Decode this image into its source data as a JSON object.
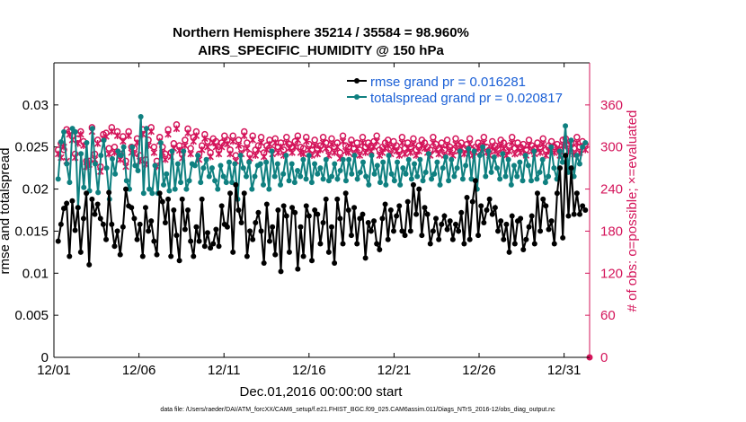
{
  "chart_data": {
    "type": "line",
    "title_line1": "Northern Hemisphere 35214 / 35584 = 98.960%",
    "title_line2": "AIRS_SPECIFIC_HUMIDITY @ 150 hPa",
    "xlabel": "Dec.01,2016 00:00:00 start",
    "ylabel_left": "rmse and totalspread",
    "ylabel_right": "# of obs: o=possible; ×=evaluated",
    "footer": "data file: /Users/raeder/DAI/ATM_forcXX/CAM6_setup/f.e21.FHIST_BGC.f09_025.CAM6assim.011/Diags_NTrS_2016-12/obs_diag_output.nc",
    "xlim": [
      0,
      31.5
    ],
    "ylim_left": [
      0,
      0.035
    ],
    "ylim_right": [
      0,
      420
    ],
    "x_tick_labels": [
      "12/01",
      "12/06",
      "12/11",
      "12/16",
      "12/21",
      "12/26",
      "12/31"
    ],
    "x_tick_values": [
      0,
      5,
      10,
      15,
      20,
      25,
      30
    ],
    "y_left_tick_labels": [
      "0",
      "0.005",
      "0.01",
      "0.015",
      "0.02",
      "0.025",
      "0.03"
    ],
    "y_left_tick_values": [
      0,
      0.005,
      0.01,
      0.015,
      0.02,
      0.025,
      0.03
    ],
    "y_right_tick_labels": [
      "0",
      "60",
      "120",
      "180",
      "240",
      "300",
      "360"
    ],
    "y_right_tick_values": [
      0,
      60,
      120,
      180,
      240,
      300,
      360
    ],
    "colors": {
      "rmse": "#000000",
      "spread": "#0f8080",
      "obs": "#d4145a",
      "legend_text": "#1a5fd6"
    },
    "series": [
      {
        "name": "rmse grand pr = 0.016281",
        "axis": "left",
        "values": [
          0.0138,
          0.0158,
          0.0177,
          0.0183,
          0.012,
          0.0186,
          0.0151,
          0.0178,
          0.0125,
          0.0165,
          0.0195,
          0.011,
          0.0188,
          0.017,
          0.0182,
          0.0165,
          0.0158,
          0.014,
          0.0196,
          0.0158,
          0.0132,
          0.015,
          0.0122,
          0.0155,
          0.02,
          0.018,
          0.0178,
          0.0165,
          0.014,
          0.0158,
          0.012,
          0.0178,
          0.015,
          0.0162,
          0.0138,
          0.0122,
          0.0195,
          0.0185,
          0.016,
          0.0188,
          0.012,
          0.0175,
          0.0145,
          0.0115,
          0.0188,
          0.0152,
          0.0175,
          0.0138,
          0.012,
          0.0155,
          0.0138,
          0.0188,
          0.0132,
          0.0148,
          0.013,
          0.0135,
          0.0152,
          0.0132,
          0.018,
          0.0158,
          0.0155,
          0.0195,
          0.0125,
          0.0205,
          0.0175,
          0.016,
          0.0195,
          0.012,
          0.015,
          0.014,
          0.016,
          0.0172,
          0.015,
          0.0112,
          0.0182,
          0.0138,
          0.0155,
          0.0122,
          0.0175,
          0.0102,
          0.018,
          0.0168,
          0.0125,
          0.0178,
          0.0172,
          0.0105,
          0.0155,
          0.012,
          0.018,
          0.0168,
          0.0115,
          0.0175,
          0.017,
          0.0135,
          0.016,
          0.0188,
          0.0125,
          0.0155,
          0.0112,
          0.0188,
          0.0165,
          0.0135,
          0.0195,
          0.0175,
          0.0145,
          0.0178,
          0.0135,
          0.0165,
          0.017,
          0.0118,
          0.016,
          0.015,
          0.0162,
          0.0135,
          0.0128,
          0.0165,
          0.0182,
          0.014,
          0.0175,
          0.015,
          0.0168,
          0.018,
          0.015,
          0.0145,
          0.0185,
          0.015,
          0.0205,
          0.017,
          0.02,
          0.0145,
          0.0178,
          0.017,
          0.0135,
          0.015,
          0.0165,
          0.014,
          0.0158,
          0.0168,
          0.0152,
          0.0162,
          0.014,
          0.0158,
          0.015,
          0.0172,
          0.0135,
          0.019,
          0.014,
          0.0185,
          0.021,
          0.0145,
          0.018,
          0.016,
          0.0175,
          0.0188,
          0.017,
          0.0178,
          0.015,
          0.0162,
          0.014,
          0.0158,
          0.0125,
          0.0168,
          0.0135,
          0.0162,
          0.0165,
          0.0128,
          0.014,
          0.0155,
          0.0168,
          0.0135,
          0.0195,
          0.015,
          0.0188,
          0.018,
          0.0152,
          0.0162,
          0.0135,
          0.0195,
          0.0225,
          0.0142,
          0.024,
          0.0168,
          0.0225,
          0.017,
          0.0195,
          0.017,
          0.018,
          0.0175
        ]
      },
      {
        "name": "totalspread grand pr = 0.020817",
        "axis": "left",
        "values": [
          0.0212,
          0.0256,
          0.0268,
          0.023,
          0.0208,
          0.0272,
          0.0268,
          0.0178,
          0.0242,
          0.0202,
          0.0255,
          0.0198,
          0.0272,
          0.023,
          0.0196,
          0.024,
          0.0258,
          0.0225,
          0.0188,
          0.0236,
          0.0218,
          0.0245,
          0.024,
          0.025,
          0.021,
          0.02,
          0.025,
          0.0228,
          0.0222,
          0.0286,
          0.0195,
          0.0272,
          0.02,
          0.0195,
          0.0228,
          0.0195,
          0.0255,
          0.0205,
          0.0218,
          0.0198,
          0.0245,
          0.02,
          0.023,
          0.0208,
          0.0245,
          0.02,
          0.021,
          0.023,
          0.0228,
          0.024,
          0.0208,
          0.0225,
          0.0235,
          0.0215,
          0.0225,
          0.021,
          0.02,
          0.0228,
          0.0215,
          0.0208,
          0.0232,
          0.0208,
          0.023,
          0.0188,
          0.024,
          0.0225,
          0.0215,
          0.0232,
          0.02,
          0.0215,
          0.0228,
          0.023,
          0.0205,
          0.0232,
          0.02,
          0.0245,
          0.0215,
          0.023,
          0.0205,
          0.0218,
          0.024,
          0.021,
          0.023,
          0.0208,
          0.0222,
          0.0215,
          0.0235,
          0.0212,
          0.024,
          0.0208,
          0.023,
          0.0218,
          0.0225,
          0.0212,
          0.0235,
          0.021,
          0.0215,
          0.023,
          0.0212,
          0.0222,
          0.0235,
          0.021,
          0.0235,
          0.0218,
          0.024,
          0.0212,
          0.022,
          0.0232,
          0.0215,
          0.0205,
          0.024,
          0.0218,
          0.0228,
          0.0208,
          0.0232,
          0.0205,
          0.024,
          0.0218,
          0.021,
          0.0232,
          0.0205,
          0.0225,
          0.0218,
          0.0235,
          0.0212,
          0.023,
          0.0215,
          0.0235,
          0.021,
          0.022,
          0.0242,
          0.0212,
          0.0218,
          0.0232,
          0.0205,
          0.0225,
          0.0238,
          0.021,
          0.0235,
          0.0215,
          0.0225,
          0.0245,
          0.0212,
          0.0228,
          0.0248,
          0.0212,
          0.0245,
          0.02,
          0.024,
          0.025,
          0.0215,
          0.0245,
          0.022,
          0.0238,
          0.0225,
          0.0212,
          0.0242,
          0.0215,
          0.0235,
          0.0205,
          0.0228,
          0.0215,
          0.0232,
          0.021,
          0.024,
          0.0228,
          0.021,
          0.0245,
          0.0212,
          0.022,
          0.0235,
          0.0208,
          0.0215,
          0.025,
          0.0225,
          0.0212,
          0.0245,
          0.0232,
          0.0275,
          0.022,
          0.0258,
          0.0215,
          0.024,
          0.023,
          0.025,
          0.0255
        ]
      },
      {
        "name": "possible",
        "axis": "right",
        "marker": "o",
        "values": [
          296,
          305,
          296,
          325,
          322,
          316,
          290,
          312,
          322,
          308,
          280,
          280,
          328,
          290,
          310,
          272,
          318,
          320,
          298,
          328,
          300,
          322,
          290,
          315,
          280,
          322,
          300,
          298,
          312,
          288,
          325,
          282,
          310,
          328,
          300,
          280,
          314,
          300,
          290,
          325,
          292,
          305,
          332,
          302,
          290,
          310,
          326,
          298,
          314,
          322,
          290,
          302,
          318,
          308,
          292,
          312,
          308,
          296,
          306,
          316,
          310,
          296,
          316,
          288,
          310,
          298,
          322,
          306,
          290,
          316,
          296,
          302,
          314,
          292,
          302,
          310,
          296,
          312,
          300,
          306,
          296,
          314,
          304,
          300,
          308,
          316,
          300,
          298,
          314,
          304,
          296,
          310,
          298,
          302,
          314,
          306,
          296,
          312,
          300,
          306,
          292,
          316,
          302,
          300,
          310,
          298,
          306,
          296,
          314,
          300,
          306,
          302,
          308,
          316,
          296,
          300,
          306,
          310,
          298,
          308,
          302,
          296,
          314,
          298,
          306,
          300,
          312,
          296,
          302,
          310,
          306,
          300,
          296,
          314,
          304,
          298,
          306,
          296,
          310,
          300,
          296,
          312,
          302,
          306,
          298,
          304,
          312,
          296,
          300,
          306,
          302,
          314,
          300,
          296,
          308,
          302,
          298,
          310,
          306,
          296,
          302,
          314,
          298,
          306,
          300,
          304,
          296,
          310,
          302,
          298,
          306,
          300,
          312,
          296,
          302,
          308,
          300,
          304,
          296,
          310,
          312,
          302,
          306,
          298,
          314,
          300,
          308,
          304
        ]
      },
      {
        "name": "evaluated",
        "axis": "right",
        "marker": "x",
        "values": [
          290,
          285,
          300,
          280,
          318,
          310,
          285,
          305,
          318,
          302,
          272,
          275,
          322,
          282,
          305,
          265,
          312,
          315,
          290,
          322,
          292,
          316,
          282,
          308,
          272,
          316,
          292,
          290,
          306,
          280,
          318,
          275,
          302,
          322,
          292,
          272,
          308,
          292,
          282,
          318,
          286,
          298,
          326,
          295,
          284,
          302,
          320,
          290,
          308,
          316,
          282,
          296,
          312,
          300,
          286,
          306,
          300,
          290,
          300,
          308,
          304,
          290,
          308,
          280,
          302,
          290,
          316,
          298,
          284,
          310,
          288,
          296,
          306,
          286,
          296,
          304,
          290,
          306,
          292,
          300,
          288,
          306,
          298,
          292,
          300,
          310,
          292,
          290,
          308,
          296,
          288,
          302,
          290,
          296,
          306,
          298,
          288,
          304,
          292,
          300,
          284,
          308,
          294,
          292,
          304,
          290,
          298,
          288,
          306,
          292,
          298,
          294,
          300,
          308,
          288,
          292,
          298,
          302,
          290,
          300,
          294,
          288,
          306,
          290,
          298,
          292,
          304,
          288,
          294,
          302,
          298,
          292,
          288,
          306,
          296,
          290,
          298,
          288,
          302,
          292,
          288,
          304,
          294,
          298,
          290,
          296,
          304,
          288,
          292,
          298,
          294,
          306,
          292,
          288,
          300,
          294,
          290,
          302,
          298,
          288,
          294,
          306,
          290,
          298,
          292,
          296,
          288,
          302,
          294,
          290,
          298,
          292,
          304,
          288,
          294,
          300,
          292,
          296,
          288,
          302,
          304,
          294,
          298,
          290,
          306,
          292,
          300,
          296
        ]
      }
    ]
  }
}
